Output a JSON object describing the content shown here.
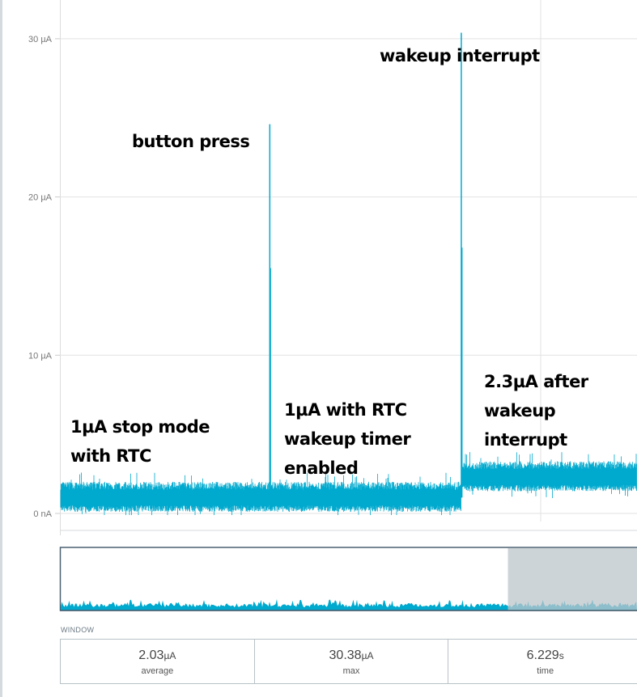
{
  "chart_data": {
    "type": "line",
    "title": "",
    "xlabel": "",
    "ylabel": "",
    "y_unit": "µA",
    "ylim": [
      0,
      30
    ],
    "yticks": [
      {
        "value": 0,
        "label": "0 nA"
      },
      {
        "value": 10,
        "label": "10 µA"
      },
      {
        "value": 20,
        "label": "20 µA"
      },
      {
        "value": 30,
        "label": "30 µA"
      }
    ],
    "xlim_s": [
      0,
      6.229
    ],
    "grid": true,
    "color": "#00a9ce",
    "segments": [
      {
        "t_start": 0,
        "t_end": 4.33,
        "level_uA": 1.0
      },
      {
        "t_start": 4.33,
        "t_end": 6.229,
        "level_uA": 2.3
      }
    ],
    "spikes": [
      {
        "t": 2.26,
        "peak_uA": 24.6,
        "secondary_uA": 15.5
      },
      {
        "t": 4.33,
        "peak_uA": 30.38,
        "secondary_uA": 16.8
      }
    ],
    "annotations": [
      {
        "text": "button press"
      },
      {
        "text": "wakeup interrupt"
      },
      {
        "text": "1µA stop mode\nwith RTC"
      },
      {
        "text": "1µA with RTC\nwakeup timer\nenabled"
      },
      {
        "text": "2.3µA after\nwakeup\ninterrupt"
      }
    ]
  },
  "overview": {
    "window_fraction_start": 0.776,
    "window_fraction_end": 1.0,
    "window_color": "#bcc5ca"
  },
  "window": {
    "label": "WINDOW",
    "stats": [
      {
        "value": "2.03",
        "unit": "µA",
        "label": "average"
      },
      {
        "value": "30.38",
        "unit": "µA",
        "label": "max"
      },
      {
        "value": "6.229",
        "unit": "s",
        "label": "time"
      }
    ]
  }
}
